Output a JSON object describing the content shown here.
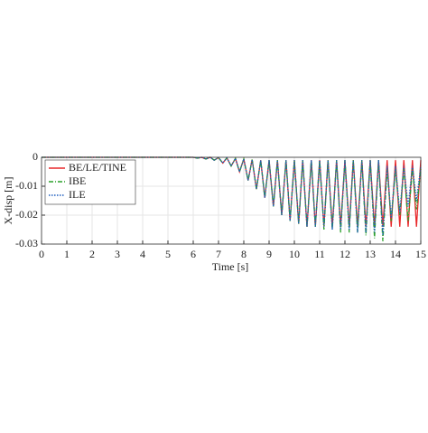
{
  "chart_data": {
    "type": "line",
    "x_label": "Time [s]",
    "y_label": "X-disp [m]",
    "x": [
      0,
      5,
      6,
      6.17,
      6.33,
      6.5,
      6.67,
      6.83,
      7,
      7.17,
      7.33,
      7.5,
      7.67,
      7.83,
      8,
      8.17,
      8.33,
      8.5,
      8.67,
      8.83,
      9,
      9.17,
      9.33,
      9.5,
      9.67,
      9.83,
      10,
      10.17,
      10.33,
      10.5,
      10.67,
      10.83,
      11,
      11.17,
      11.33,
      11.5,
      11.67,
      11.83,
      12,
      12.17,
      12.33,
      12.5,
      12.67,
      12.83,
      13,
      13.17,
      13.33,
      13.5,
      13.67,
      13.83,
      14,
      14.17,
      14.33,
      14.5,
      14.67,
      14.83,
      15
    ],
    "series": [
      {
        "name": "BE/LE/TINE",
        "color": "#e8282b",
        "linestyle": "solid",
        "values": [
          0,
          0,
          0,
          -0.0003,
          0,
          -0.0006,
          0,
          -0.001,
          -0.0001,
          -0.002,
          -0.0002,
          -0.003,
          -0.0004,
          -0.005,
          -0.0006,
          -0.008,
          -0.0008,
          -0.011,
          -0.001,
          -0.014,
          -0.001,
          -0.017,
          -0.001,
          -0.02,
          -0.001,
          -0.022,
          -0.001,
          -0.023,
          -0.001,
          -0.024,
          -0.001,
          -0.024,
          -0.001,
          -0.024,
          -0.001,
          -0.024,
          -0.001,
          -0.024,
          -0.001,
          -0.024,
          -0.001,
          -0.024,
          -0.001,
          -0.024,
          -0.001,
          -0.024,
          -0.001,
          -0.024,
          -0.001,
          -0.024,
          -0.001,
          -0.024,
          -0.001,
          -0.024,
          -0.001,
          -0.024,
          -0.001
        ]
      },
      {
        "name": "IBE",
        "color": "#2ca02c",
        "linestyle": "dashdot",
        "values": [
          0,
          0,
          0,
          -0.0003,
          0,
          -0.0006,
          0,
          -0.001,
          -0.0001,
          -0.002,
          -0.0002,
          -0.003,
          -0.0004,
          -0.005,
          -0.0006,
          -0.008,
          -0.0008,
          -0.011,
          -0.001,
          -0.014,
          -0.001,
          -0.017,
          -0.001,
          -0.02,
          -0.001,
          -0.022,
          -0.001,
          -0.023,
          -0.001,
          -0.024,
          -0.001,
          -0.024,
          -0.001,
          -0.025,
          -0.001,
          -0.025,
          -0.001,
          -0.026,
          -0.001,
          -0.026,
          -0.001,
          -0.026,
          -0.001,
          -0.027,
          -0.001,
          -0.028,
          -0.001,
          -0.029,
          -0.004,
          -0.022,
          -0.004,
          -0.02,
          -0.004,
          -0.022,
          -0.004,
          -0.018,
          -0.004
        ]
      },
      {
        "name": "ILE",
        "color": "#1f5fbf",
        "linestyle": "dotted",
        "values": [
          0,
          0,
          0,
          -0.0003,
          0,
          -0.0006,
          0,
          -0.001,
          -0.0001,
          -0.002,
          -0.0002,
          -0.003,
          -0.0004,
          -0.005,
          -0.0006,
          -0.008,
          -0.0008,
          -0.011,
          -0.001,
          -0.014,
          -0.001,
          -0.017,
          -0.001,
          -0.02,
          -0.001,
          -0.022,
          -0.001,
          -0.023,
          -0.001,
          -0.024,
          -0.001,
          -0.024,
          -0.001,
          -0.024,
          -0.001,
          -0.025,
          -0.001,
          -0.025,
          -0.001,
          -0.025,
          -0.001,
          -0.026,
          -0.001,
          -0.026,
          -0.001,
          -0.026,
          -0.001,
          -0.027,
          -0.003,
          -0.021,
          -0.003,
          -0.019,
          -0.003,
          -0.017,
          -0.003,
          -0.015,
          -0.003
        ]
      }
    ],
    "xlim": [
      0,
      15
    ],
    "ylim": [
      -0.03,
      0
    ],
    "xticks": [
      0,
      1,
      2,
      3,
      4,
      5,
      6,
      7,
      8,
      9,
      10,
      11,
      12,
      13,
      14,
      15
    ],
    "yticks": [
      0,
      -0.01,
      -0.02,
      -0.03
    ],
    "grid": true,
    "legend": "upper left"
  }
}
